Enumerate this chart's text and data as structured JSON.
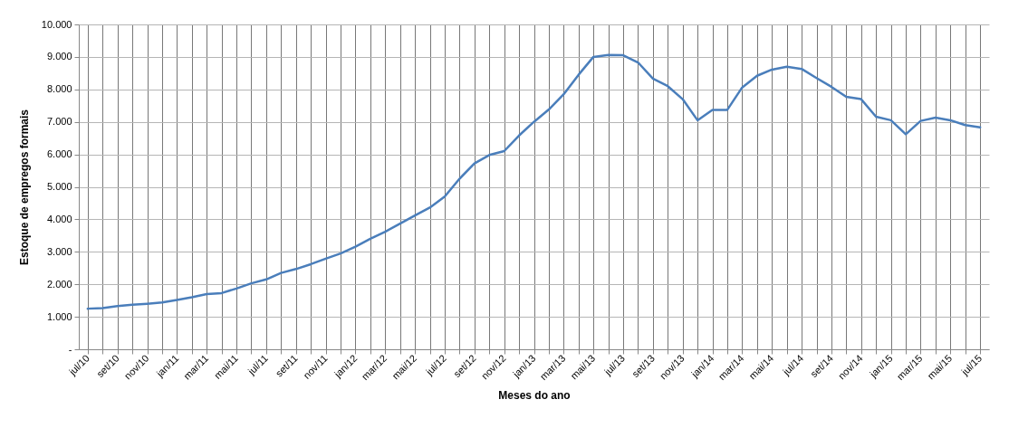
{
  "chart_data": {
    "type": "line",
    "xlabel": "Meses do ano",
    "ylabel": "Estoque de empregos formais",
    "categories": [
      "jul/10",
      null,
      "set/10",
      null,
      "nov/10",
      null,
      "jan/11",
      null,
      "mar/11",
      null,
      "mai/11",
      null,
      "jul/11",
      null,
      "set/11",
      null,
      "nov/11",
      null,
      "jan/12",
      null,
      "mar/12",
      null,
      "mai/12",
      null,
      "jul/12",
      null,
      "set/12",
      null,
      "nov/12",
      null,
      "jan/13",
      null,
      "mar/13",
      null,
      "mai/13",
      null,
      "jul/13",
      null,
      "set/13",
      null,
      "nov/13",
      null,
      "jan/14",
      null,
      "mar/14",
      null,
      "mai/14",
      null,
      "jul/14",
      null,
      "set/14",
      null,
      "nov/14",
      null,
      "jan/15",
      null,
      "mar/15",
      null,
      "mai/15",
      null,
      "jul/15"
    ],
    "series": [
      {
        "color": "#4a7ebb",
        "values": [
          1250,
          1270,
          1330,
          1370,
          1400,
          1440,
          1520,
          1600,
          1700,
          1730,
          1870,
          2030,
          2150,
          2350,
          2470,
          2620,
          2790,
          2950,
          3160,
          3400,
          3620,
          3870,
          4120,
          4360,
          4700,
          5250,
          5720,
          5980,
          6100,
          6580,
          7000,
          7380,
          7850,
          8450,
          9000,
          9060,
          9050,
          8830,
          8330,
          8100,
          7700,
          7050,
          7370,
          7370,
          8060,
          8420,
          8610,
          8700,
          8630,
          8350,
          8080,
          7770,
          7700,
          7160,
          7050,
          6620,
          7030,
          7130,
          7050,
          6900,
          6830
        ]
      }
    ],
    "ylim": [
      0,
      10000
    ],
    "yticks": [
      {
        "value": 0,
        "label": "-"
      },
      {
        "value": 1000,
        "label": "1.000"
      },
      {
        "value": 2000,
        "label": "2.000"
      },
      {
        "value": 3000,
        "label": "3.000"
      },
      {
        "value": 4000,
        "label": "4.000"
      },
      {
        "value": 5000,
        "label": "5.000"
      },
      {
        "value": 6000,
        "label": "6.000"
      },
      {
        "value": 7000,
        "label": "7.000"
      },
      {
        "value": 8000,
        "label": "8.000"
      },
      {
        "value": 9000,
        "label": "9.000"
      },
      {
        "value": 10000,
        "label": "10.000"
      }
    ],
    "grid": true,
    "legend": false,
    "marker": "none",
    "line_style": "solid"
  }
}
